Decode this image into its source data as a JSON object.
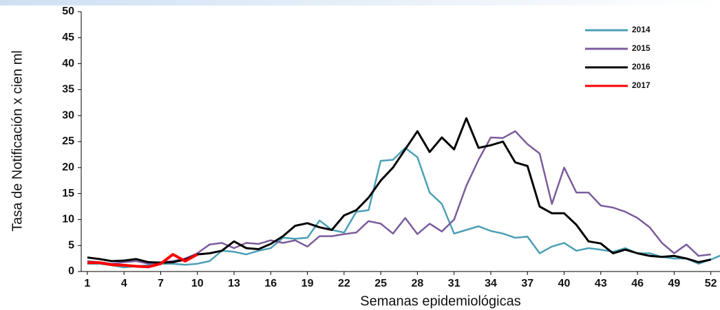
{
  "chart_data": {
    "type": "line",
    "ylabel": "Tasa de Notificación x cien ml",
    "xlabel": "Semanas epidemiológicas",
    "x": [
      1,
      2,
      3,
      4,
      5,
      6,
      7,
      8,
      9,
      10,
      11,
      12,
      13,
      14,
      15,
      16,
      17,
      18,
      19,
      20,
      21,
      22,
      23,
      24,
      25,
      26,
      27,
      28,
      29,
      30,
      31,
      32,
      33,
      34,
      35,
      36,
      37,
      38,
      39,
      40,
      41,
      42,
      43,
      44,
      45,
      46,
      47,
      48,
      49,
      50,
      51,
      52,
      53
    ],
    "xlim": [
      0.5,
      52.75
    ],
    "xticks": [
      1,
      4,
      7,
      10,
      13,
      16,
      19,
      22,
      25,
      28,
      31,
      34,
      37,
      40,
      43,
      46,
      49,
      52
    ],
    "ylim": [
      0,
      50
    ],
    "yticks": [
      0,
      5,
      10,
      15,
      20,
      25,
      30,
      35,
      40,
      45,
      50
    ],
    "legend": "upper right",
    "series": [
      {
        "name": "2014",
        "color": "#4a9fb5",
        "values": [
          1.5,
          1.5,
          1.2,
          0.8,
          1.0,
          1.2,
          1.5,
          1.5,
          1.3,
          1.5,
          2.0,
          4.0,
          3.8,
          3.3,
          4.0,
          4.5,
          6.5,
          6.3,
          6.5,
          9.8,
          8.0,
          7.5,
          11.5,
          11.8,
          21.3,
          21.5,
          23.8,
          22.0,
          15.2,
          13.0,
          7.3,
          8.0,
          8.7,
          7.8,
          7.3,
          6.5,
          6.7,
          3.5,
          4.8,
          5.5,
          4.0,
          4.5,
          4.2,
          3.8,
          4.5,
          3.5,
          3.5,
          2.8,
          2.5,
          2.5,
          1.5,
          2.3,
          3.3
        ]
      },
      {
        "name": "2015",
        "color": "#7b5b9b",
        "values": [
          2.0,
          1.8,
          1.5,
          1.8,
          2.0,
          1.5,
          1.8,
          2.0,
          2.5,
          3.5,
          5.2,
          5.5,
          4.5,
          5.5,
          5.3,
          6.0,
          5.5,
          6.0,
          4.8,
          6.8,
          6.8,
          7.2,
          7.5,
          9.7,
          9.2,
          7.3,
          10.3,
          7.2,
          9.2,
          7.7,
          10.0,
          16.5,
          21.5,
          25.8,
          25.7,
          27.0,
          24.5,
          22.7,
          13.0,
          20.0,
          15.2,
          15.2,
          12.7,
          12.3,
          11.5,
          10.3,
          8.5,
          5.5,
          3.5,
          5.2,
          3.0,
          3.3,
          null
        ]
      },
      {
        "name": "2016",
        "color": "#000000",
        "values": [
          2.7,
          2.4,
          2.0,
          2.1,
          2.4,
          1.8,
          1.7,
          1.8,
          2.3,
          3.3,
          3.5,
          4.0,
          5.8,
          4.5,
          4.3,
          5.3,
          6.8,
          8.8,
          9.3,
          8.5,
          8.0,
          10.8,
          11.8,
          14.2,
          17.5,
          20.0,
          23.5,
          27.0,
          23.0,
          25.8,
          23.5,
          29.5,
          23.8,
          24.3,
          25.0,
          21.0,
          20.3,
          12.5,
          11.2,
          11.2,
          9.0,
          5.8,
          5.4,
          3.5,
          4.2,
          3.5,
          3.0,
          2.8,
          3.0,
          2.5,
          1.8,
          2.3,
          null
        ]
      },
      {
        "name": "2017",
        "color": "#ff0000",
        "values": [
          1.7,
          1.7,
          1.3,
          1.2,
          1.0,
          0.9,
          1.5,
          3.3,
          2.0,
          3.3,
          null,
          null,
          null,
          null,
          null,
          null,
          null,
          null,
          null,
          null,
          null,
          null,
          null,
          null,
          null,
          null,
          null,
          null,
          null,
          null,
          null,
          null,
          null,
          null,
          null,
          null,
          null,
          null,
          null,
          null,
          null,
          null,
          null,
          null,
          null,
          null,
          null,
          null,
          null,
          null,
          null,
          null,
          null
        ]
      }
    ]
  }
}
